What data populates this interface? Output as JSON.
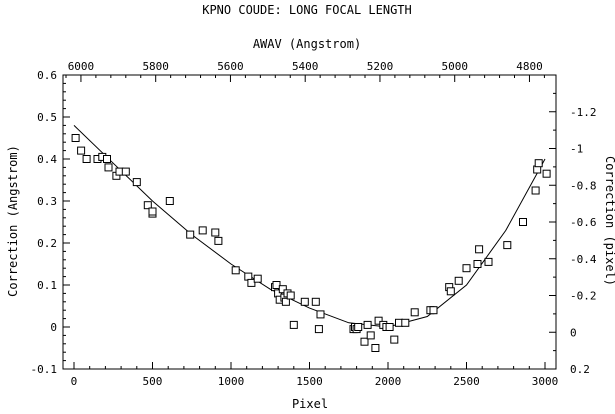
{
  "chart_data": {
    "type": "scatter",
    "title": "KPNO COUDE: LONG FOCAL LENGTH",
    "xlabel": "Pixel",
    "ylabel": "Correction (Angstrom)",
    "x2label": "AWAV (Angstrom)",
    "y2label": "Correction (pixel)",
    "xlim": [
      -70,
      3070
    ],
    "ylim": [
      -0.1,
      0.6
    ],
    "x2lim": [
      6048,
      4729
    ],
    "y2lim": [
      0.2,
      -1.4
    ],
    "grid": false,
    "x_ticks": [
      0,
      500,
      1000,
      1500,
      2000,
      2500,
      3000
    ],
    "x_tick_labels": [
      "0",
      "500",
      "1000",
      "1500",
      "2000",
      "2500",
      "3000"
    ],
    "y_ticks": [
      -0.1,
      0,
      0.1,
      0.2,
      0.3,
      0.4,
      0.5,
      0.6
    ],
    "y_tick_labels": [
      "-0.1",
      "0",
      "0.1",
      "0.2",
      "0.3",
      "0.4",
      "0.5",
      "0.6"
    ],
    "x2_ticks": [
      6000,
      5800,
      5600,
      5400,
      5200,
      5000,
      4800
    ],
    "x2_tick_labels": [
      "6000",
      "5800",
      "5600",
      "5400",
      "5200",
      "5000",
      "4800"
    ],
    "y2_ticks": [
      0.2,
      0,
      -0.2,
      -0.4,
      -0.6,
      -0.8,
      -1,
      -1.2
    ],
    "y2_tick_labels": [
      "0.2",
      "0",
      "-0.2",
      "-0.4",
      "-0.6",
      "-0.8",
      "-1",
      "-1.2"
    ],
    "series": [
      {
        "marker": "square",
        "x": [
          10,
          45,
          80,
          150,
          180,
          210,
          220,
          270,
          290,
          330,
          400,
          470,
          500,
          500,
          610,
          740,
          820,
          900,
          920,
          1030,
          1110,
          1130,
          1170,
          1280,
          1290,
          1300,
          1310,
          1330,
          1340,
          1350,
          1360,
          1380,
          1400,
          1470,
          1540,
          1560,
          1570,
          1780,
          1790,
          1800,
          1810,
          1850,
          1870,
          1890,
          1920,
          1940,
          1970,
          1990,
          2010,
          2040,
          2070,
          2110,
          2170,
          2270,
          2290,
          2390,
          2400,
          2450,
          2500,
          2570,
          2580,
          2640,
          2760,
          2860,
          2940,
          2950,
          2960,
          3010
        ],
        "y": [
          0.45,
          0.42,
          0.4,
          0.4,
          0.405,
          0.4,
          0.38,
          0.36,
          0.37,
          0.37,
          0.345,
          0.29,
          0.27,
          0.275,
          0.3,
          0.22,
          0.23,
          0.225,
          0.205,
          0.135,
          0.12,
          0.105,
          0.115,
          0.095,
          0.1,
          0.08,
          0.065,
          0.09,
          0.07,
          0.06,
          0.08,
          0.075,
          0.005,
          0.06,
          0.06,
          -0.005,
          0.03,
          -0.005,
          0.0,
          -0.005,
          0.0,
          -0.035,
          0.005,
          -0.02,
          -0.05,
          0.015,
          0.005,
          0.0,
          0.0,
          -0.03,
          0.01,
          0.01,
          0.035,
          0.04,
          0.04,
          0.095,
          0.085,
          0.11,
          0.14,
          0.15,
          0.185,
          0.155,
          0.195,
          0.25,
          0.325,
          0.375,
          0.39,
          0.365
        ]
      },
      {
        "style": "line",
        "x": [
          0,
          250,
          500,
          750,
          1000,
          1250,
          1500,
          1750,
          2000,
          2250,
          2500,
          2750,
          3000
        ],
        "y": [
          0.48,
          0.39,
          0.3,
          0.22,
          0.15,
          0.09,
          0.045,
          0.01,
          0.0,
          0.025,
          0.1,
          0.23,
          0.4
        ]
      }
    ]
  }
}
